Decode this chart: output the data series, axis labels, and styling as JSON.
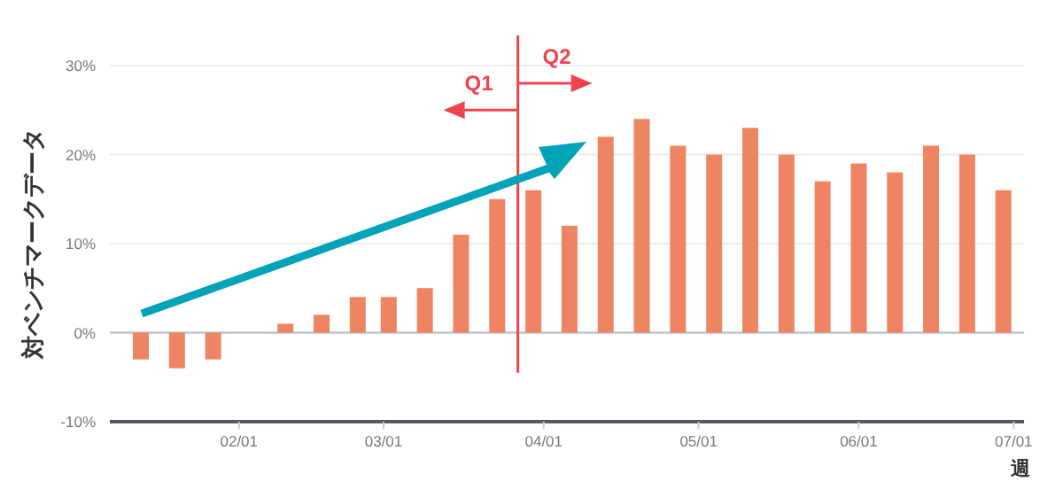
{
  "chart_data": {
    "type": "bar",
    "ylabel": "対ベンチマークデータ",
    "xlabel": "週",
    "x": [
      "--01-13",
      "--01-20",
      "--01-27",
      "--02-03",
      "--02-10",
      "--02-17",
      "--02-24",
      "--03-02",
      "--03-09",
      "--03-16",
      "--03-23",
      "--03-30",
      "--04-06",
      "--04-13",
      "--04-20",
      "--04-27",
      "--05-04",
      "--05-11",
      "--05-18",
      "--05-25",
      "--06-01",
      "--06-08",
      "--06-15",
      "--06-22",
      "--06-29"
    ],
    "values": [
      -3,
      -4,
      -3,
      0,
      1,
      2,
      4,
      4,
      5,
      11,
      15,
      16,
      12,
      22,
      24,
      21,
      20,
      23,
      20,
      17,
      19,
      18,
      21,
      20,
      16
    ],
    "color": "#ef8463",
    "xlim": [
      "--01-07",
      "--07-03"
    ],
    "xticks": [
      {
        "value": "--02-01",
        "label": "02/01"
      },
      {
        "value": "--03-01",
        "label": "03/01"
      },
      {
        "value": "--04-01",
        "label": "04/01"
      },
      {
        "value": "--05-01",
        "label": "05/01"
      },
      {
        "value": "--06-01",
        "label": "06/01"
      },
      {
        "value": "--07-01",
        "label": "07/01"
      }
    ],
    "ylim": [
      -10,
      30
    ],
    "yticks": [
      {
        "value": -10,
        "label": "-10%"
      },
      {
        "value": 0,
        "label": "0%"
      },
      {
        "value": 10,
        "label": "10%"
      },
      {
        "value": 20,
        "label": "20%"
      },
      {
        "value": 30,
        "label": "30%"
      }
    ],
    "grid": "y",
    "ref_lines": [
      {
        "axis": "x",
        "value": "--03-27",
        "color": "#f0434f"
      }
    ],
    "annotations": [
      {
        "text": "Q1",
        "x": "--03-27",
        "y": 25
      },
      {
        "text": "Q2",
        "x": "--03-27",
        "y": 28
      }
    ]
  }
}
